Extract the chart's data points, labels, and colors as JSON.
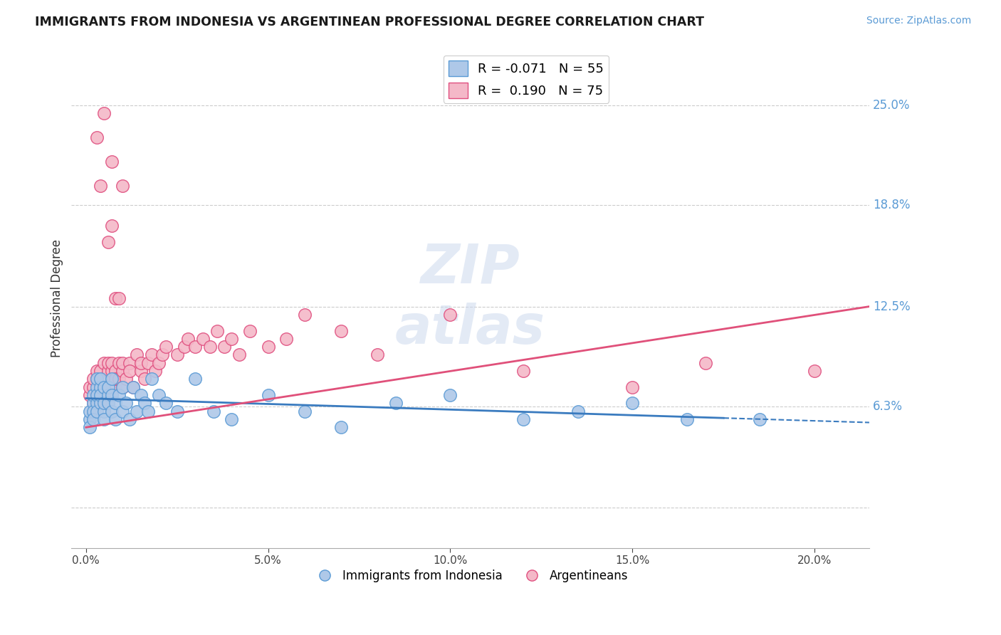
{
  "title": "IMMIGRANTS FROM INDONESIA VS ARGENTINEAN PROFESSIONAL DEGREE CORRELATION CHART",
  "source_text": "Source: ZipAtlas.com",
  "ylabel": "Professional Degree",
  "x_ticks": [
    0.0,
    0.05,
    0.1,
    0.15,
    0.2
  ],
  "x_tick_labels": [
    "0.0%",
    "5.0%",
    "10.0%",
    "15.0%",
    "20.0%"
  ],
  "y_ticks": [
    0.0,
    0.063,
    0.125,
    0.188,
    0.25
  ],
  "y_tick_labels": [
    "",
    "6.3%",
    "12.5%",
    "18.8%",
    "25.0%"
  ],
  "xlim": [
    -0.004,
    0.215
  ],
  "ylim": [
    -0.025,
    0.285
  ],
  "blue_R": -0.071,
  "blue_N": 55,
  "pink_R": 0.19,
  "pink_N": 75,
  "blue_color": "#aec8e8",
  "pink_color": "#f4b8c8",
  "blue_edge_color": "#5b9bd5",
  "pink_edge_color": "#e05080",
  "blue_line_color": "#3a7bbf",
  "pink_line_color": "#e0507a",
  "legend_label_blue": "Immigrants from Indonesia",
  "legend_label_pink": "Argentineans",
  "grid_color": "#cccccc",
  "blue_x": [
    0.001,
    0.001,
    0.001,
    0.002,
    0.002,
    0.002,
    0.002,
    0.003,
    0.003,
    0.003,
    0.003,
    0.003,
    0.004,
    0.004,
    0.004,
    0.004,
    0.005,
    0.005,
    0.005,
    0.005,
    0.006,
    0.006,
    0.006,
    0.007,
    0.007,
    0.007,
    0.008,
    0.008,
    0.009,
    0.01,
    0.01,
    0.011,
    0.012,
    0.013,
    0.014,
    0.015,
    0.016,
    0.017,
    0.018,
    0.02,
    0.022,
    0.025,
    0.03,
    0.035,
    0.04,
    0.05,
    0.06,
    0.07,
    0.085,
    0.1,
    0.12,
    0.135,
    0.15,
    0.165,
    0.185
  ],
  "blue_y": [
    0.055,
    0.06,
    0.05,
    0.065,
    0.06,
    0.055,
    0.07,
    0.075,
    0.08,
    0.065,
    0.07,
    0.06,
    0.075,
    0.065,
    0.08,
    0.07,
    0.06,
    0.075,
    0.055,
    0.065,
    0.07,
    0.065,
    0.075,
    0.06,
    0.07,
    0.08,
    0.055,
    0.065,
    0.07,
    0.06,
    0.075,
    0.065,
    0.055,
    0.075,
    0.06,
    0.07,
    0.065,
    0.06,
    0.08,
    0.07,
    0.065,
    0.06,
    0.08,
    0.06,
    0.055,
    0.07,
    0.06,
    0.05,
    0.065,
    0.07,
    0.055,
    0.06,
    0.065,
    0.055,
    0.055
  ],
  "pink_x": [
    0.001,
    0.001,
    0.002,
    0.002,
    0.002,
    0.003,
    0.003,
    0.003,
    0.003,
    0.004,
    0.004,
    0.004,
    0.005,
    0.005,
    0.005,
    0.005,
    0.006,
    0.006,
    0.006,
    0.007,
    0.007,
    0.007,
    0.007,
    0.008,
    0.008,
    0.008,
    0.009,
    0.009,
    0.01,
    0.01,
    0.01,
    0.011,
    0.012,
    0.012,
    0.013,
    0.014,
    0.015,
    0.015,
    0.016,
    0.017,
    0.018,
    0.019,
    0.02,
    0.021,
    0.022,
    0.025,
    0.027,
    0.028,
    0.03,
    0.032,
    0.034,
    0.036,
    0.038,
    0.04,
    0.042,
    0.045,
    0.05,
    0.055,
    0.06,
    0.07,
    0.08,
    0.1,
    0.12,
    0.15,
    0.17,
    0.2,
    0.003,
    0.004,
    0.005,
    0.006,
    0.007,
    0.007,
    0.008,
    0.009,
    0.01
  ],
  "pink_y": [
    0.07,
    0.075,
    0.065,
    0.075,
    0.08,
    0.065,
    0.08,
    0.085,
    0.07,
    0.075,
    0.065,
    0.085,
    0.07,
    0.08,
    0.09,
    0.065,
    0.075,
    0.085,
    0.09,
    0.075,
    0.08,
    0.085,
    0.09,
    0.075,
    0.085,
    0.08,
    0.08,
    0.09,
    0.075,
    0.085,
    0.09,
    0.08,
    0.09,
    0.085,
    0.075,
    0.095,
    0.085,
    0.09,
    0.08,
    0.09,
    0.095,
    0.085,
    0.09,
    0.095,
    0.1,
    0.095,
    0.1,
    0.105,
    0.1,
    0.105,
    0.1,
    0.11,
    0.1,
    0.105,
    0.095,
    0.11,
    0.1,
    0.105,
    0.12,
    0.11,
    0.095,
    0.12,
    0.085,
    0.075,
    0.09,
    0.085,
    0.23,
    0.2,
    0.245,
    0.165,
    0.215,
    0.175,
    0.13,
    0.13,
    0.2
  ],
  "blue_trend_x0": 0.0,
  "blue_trend_x1": 0.215,
  "blue_trend_y0": 0.068,
  "blue_trend_y1": 0.053,
  "pink_trend_x0": 0.0,
  "pink_trend_x1": 0.215,
  "pink_trend_y0": 0.05,
  "pink_trend_y1": 0.125
}
